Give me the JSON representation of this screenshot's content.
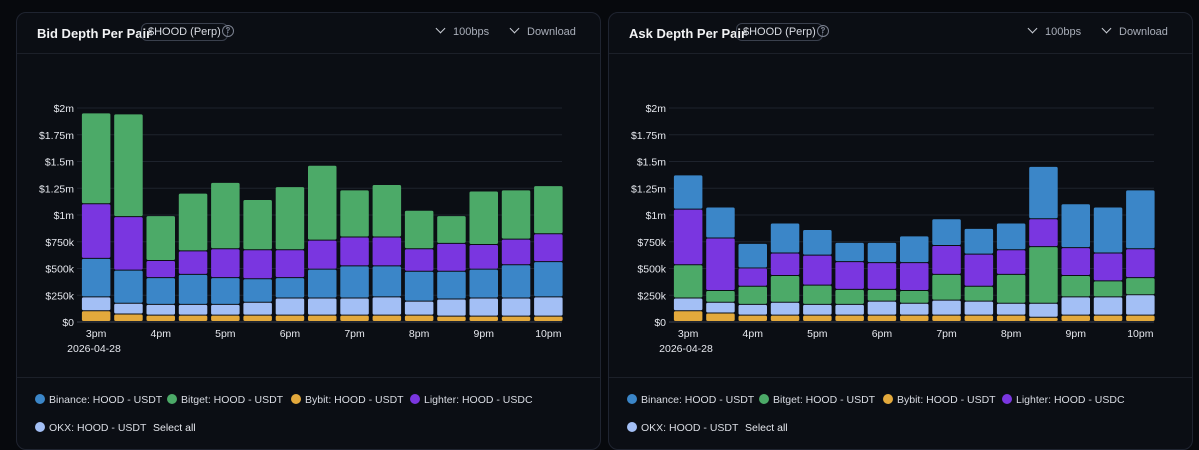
{
  "panels": [
    {
      "title": "Bid Depth Per Pair",
      "ticker_tag": "$HOOD (Perp)",
      "bps_label": "100bps",
      "download_label": "Download",
      "select_all_label": "Select all",
      "legend": [
        {
          "name": "Binance: HOOD - USDT",
          "color": "#3b86c8"
        },
        {
          "name": "Bitget: HOOD - USDT",
          "color": "#4caa68"
        },
        {
          "name": "Bybit: HOOD - USDT",
          "color": "#e3a93c"
        },
        {
          "name": "Lighter: HOOD - USDC",
          "color": "#7a36e0"
        },
        {
          "name": "OKX: HOOD - USDT",
          "color": "#a3bff5"
        }
      ]
    },
    {
      "title": "Ask Depth Per Pair",
      "ticker_tag": "$HOOD (Perp)",
      "bps_label": "100bps",
      "download_label": "Download",
      "select_all_label": "Select all",
      "legend": [
        {
          "name": "Binance: HOOD - USDT",
          "color": "#3b86c8"
        },
        {
          "name": "Bitget: HOOD - USDT",
          "color": "#4caa68"
        },
        {
          "name": "Bybit: HOOD - USDT",
          "color": "#e3a93c"
        },
        {
          "name": "Lighter: HOOD - USDC",
          "color": "#7a36e0"
        },
        {
          "name": "OKX: HOOD - USDT",
          "color": "#a3bff5"
        }
      ]
    }
  ],
  "chart_data": [
    {
      "type": "bar",
      "stacked": true,
      "title": "Bid Depth Per Pair",
      "ylim": [
        0,
        2000000
      ],
      "y_ticks": [
        0,
        250000,
        500000,
        750000,
        1000000,
        1250000,
        1500000,
        1750000,
        2000000
      ],
      "y_tick_labels": [
        "$0",
        "$250k",
        "$500k",
        "$750k",
        "$1m",
        "$1.25m",
        "$1.5m",
        "$1.75m",
        "$2m"
      ],
      "x_tick_labels": [
        "3pm",
        "4pm",
        "5pm",
        "6pm",
        "7pm",
        "8pm",
        "9pm",
        "10pm"
      ],
      "x_date_label": "2026-04-28",
      "grid": true,
      "legend_position": "bottom",
      "series": [
        {
          "name": "Bybit: HOOD - USDT",
          "color": "#e3a93c",
          "values": [
            100000,
            70000,
            60000,
            60000,
            60000,
            60000,
            60000,
            60000,
            60000,
            60000,
            60000,
            50000,
            50000,
            50000,
            50000
          ]
        },
        {
          "name": "OKX: HOOD - USDT",
          "color": "#a3bff5",
          "values": [
            130000,
            100000,
            100000,
            100000,
            100000,
            120000,
            160000,
            160000,
            160000,
            170000,
            130000,
            160000,
            170000,
            170000,
            180000
          ]
        },
        {
          "name": "Binance: HOOD - USDT",
          "color": "#3b86c8",
          "values": [
            360000,
            310000,
            250000,
            280000,
            250000,
            220000,
            190000,
            270000,
            300000,
            290000,
            280000,
            260000,
            270000,
            310000,
            330000
          ]
        },
        {
          "name": "Lighter: HOOD - USDC",
          "color": "#7a36e0",
          "values": [
            510000,
            500000,
            160000,
            220000,
            270000,
            270000,
            260000,
            270000,
            270000,
            270000,
            210000,
            260000,
            230000,
            240000,
            260000
          ]
        },
        {
          "name": "Bitget: HOOD - USDT",
          "color": "#4caa68",
          "values": [
            850000,
            960000,
            420000,
            540000,
            620000,
            470000,
            590000,
            700000,
            440000,
            490000,
            360000,
            260000,
            500000,
            460000,
            450000
          ]
        }
      ]
    },
    {
      "type": "bar",
      "stacked": true,
      "title": "Ask Depth Per Pair",
      "ylim": [
        0,
        2000000
      ],
      "y_ticks": [
        0,
        250000,
        500000,
        750000,
        1000000,
        1250000,
        1500000,
        1750000,
        2000000
      ],
      "y_tick_labels": [
        "$0",
        "$250k",
        "$500k",
        "$750k",
        "$1m",
        "$1.25m",
        "$1.5m",
        "$1.75m",
        "$2m"
      ],
      "x_tick_labels": [
        "3pm",
        "4pm",
        "5pm",
        "6pm",
        "7pm",
        "8pm",
        "9pm",
        "10pm"
      ],
      "x_date_label": "2026-04-28",
      "grid": true,
      "legend_position": "bottom",
      "series": [
        {
          "name": "Bybit: HOOD - USDT",
          "color": "#e3a93c",
          "values": [
            100000,
            80000,
            60000,
            60000,
            60000,
            60000,
            60000,
            60000,
            60000,
            60000,
            60000,
            40000,
            60000,
            60000,
            60000
          ]
        },
        {
          "name": "OKX: HOOD - USDT",
          "color": "#a3bff5",
          "values": [
            120000,
            100000,
            100000,
            120000,
            100000,
            100000,
            130000,
            110000,
            140000,
            130000,
            110000,
            130000,
            170000,
            170000,
            190000
          ]
        },
        {
          "name": "Bitget: HOOD - USDT",
          "color": "#4caa68",
          "values": [
            310000,
            110000,
            170000,
            250000,
            180000,
            140000,
            110000,
            120000,
            240000,
            140000,
            270000,
            530000,
            200000,
            150000,
            160000
          ]
        },
        {
          "name": "Lighter: HOOD - USDC",
          "color": "#7a36e0",
          "values": [
            520000,
            490000,
            170000,
            210000,
            280000,
            260000,
            250000,
            260000,
            270000,
            300000,
            230000,
            260000,
            260000,
            260000,
            270000
          ]
        },
        {
          "name": "Binance: HOOD - USDT",
          "color": "#3b86c8",
          "values": [
            320000,
            290000,
            230000,
            280000,
            240000,
            180000,
            190000,
            250000,
            250000,
            240000,
            250000,
            490000,
            410000,
            430000,
            550000
          ]
        }
      ]
    }
  ]
}
